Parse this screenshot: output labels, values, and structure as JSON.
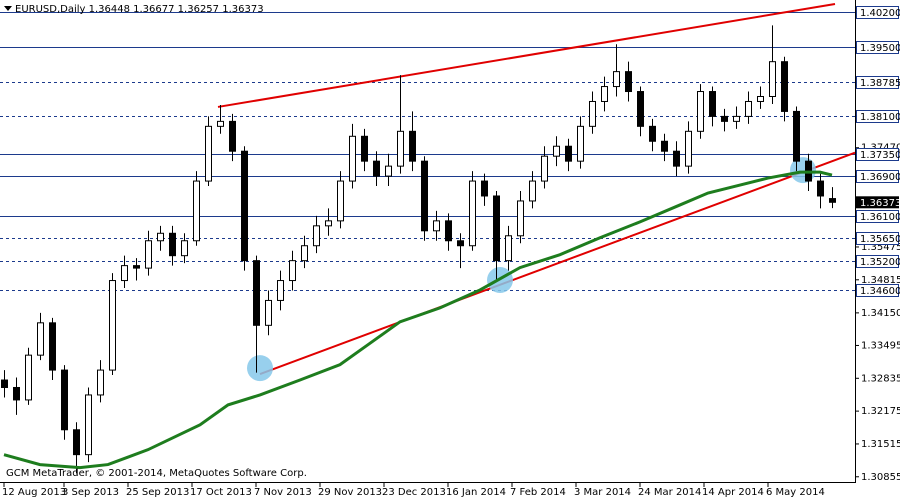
{
  "chart_data": {
    "type": "candlestick",
    "title": "EURUSD,Daily  1.36448 1.36677 1.36257 1.36373",
    "footer": "GCM MetaTrader, © 2001-2014, MetaQuotes Software Corp.",
    "xlim": [
      -1,
      212.75
    ],
    "ylim": [
      1.3075,
      1.4044
    ],
    "xticks": [
      {
        "value": 0,
        "label": "12 Aug 2013"
      },
      {
        "value": 15,
        "label": "3 Sep 2013"
      },
      {
        "value": 31,
        "label": "25 Sep 2013"
      },
      {
        "value": 47,
        "label": "17 Oct 2013"
      },
      {
        "value": 63,
        "label": "7 Nov 2013"
      },
      {
        "value": 79,
        "label": "29 Nov 2013"
      },
      {
        "value": 95,
        "label": "23 Dec 2013"
      },
      {
        "value": 111,
        "label": "16 Jan 2014"
      },
      {
        "value": 127,
        "label": "7 Feb 2014"
      },
      {
        "value": 143,
        "label": "3 Mar 2014"
      },
      {
        "value": 159,
        "label": "24 Mar 2014"
      },
      {
        "value": 175,
        "label": "14 Apr 2014"
      },
      {
        "value": 191,
        "label": "6 May 2014"
      }
    ],
    "yticks": [
      {
        "value": 1.3747,
        "label": "1.37470"
      },
      {
        "value": 1.35475,
        "label": "1.35475"
      },
      {
        "value": 1.34815,
        "label": "1.34815"
      },
      {
        "value": 1.3415,
        "label": "1.34150"
      },
      {
        "value": 1.33495,
        "label": "1.33495"
      },
      {
        "value": 1.32835,
        "label": "1.32835"
      },
      {
        "value": 1.32175,
        "label": "1.32175"
      },
      {
        "value": 1.31515,
        "label": "1.31515"
      },
      {
        "value": 1.30855,
        "label": "1.30855"
      }
    ],
    "levels": [
      {
        "value": 1.402,
        "label": "1.40200",
        "style": "solid"
      },
      {
        "value": 1.395,
        "label": "1.39500",
        "style": "solid"
      },
      {
        "value": 1.38785,
        "label": "1.38785",
        "style": "dashed"
      },
      {
        "value": 1.381,
        "label": "1.38100",
        "style": "dashed"
      },
      {
        "value": 1.3735,
        "label": "1.37350",
        "style": "solid"
      },
      {
        "value": 1.369,
        "label": "1.36900",
        "style": "solid"
      },
      {
        "value": 1.361,
        "label": "1.36100",
        "style": "solid"
      },
      {
        "value": 1.3565,
        "label": "1.35650",
        "style": "dashed"
      },
      {
        "value": 1.352,
        "label": "1.35200",
        "style": "dashed"
      },
      {
        "value": 1.346,
        "label": "1.34600",
        "style": "dashed"
      }
    ],
    "level_color": "#1c3a8c",
    "last_price": {
      "value": 1.36373,
      "label": "1.36373"
    },
    "candle_color": "#000000",
    "x": [
      0,
      3,
      6,
      9,
      12,
      15,
      18,
      21,
      24,
      27,
      30,
      33,
      36,
      39,
      42,
      45,
      48,
      51,
      54,
      57,
      60,
      63,
      66,
      69,
      72,
      75,
      78,
      81,
      84,
      87,
      90,
      93,
      96,
      99,
      102,
      105,
      108,
      111,
      114,
      117,
      120,
      123,
      126,
      129,
      132,
      135,
      138,
      141,
      144,
      147,
      150,
      153,
      156,
      159,
      162,
      165,
      168,
      171,
      174,
      177,
      180,
      183,
      186,
      189,
      192,
      195,
      198,
      201,
      204,
      207
    ],
    "open": [
      1.328,
      1.3265,
      1.324,
      1.333,
      1.3395,
      1.33,
      1.318,
      1.313,
      1.325,
      1.33,
      1.348,
      1.351,
      1.3505,
      1.356,
      1.3575,
      1.353,
      1.356,
      1.368,
      1.379,
      1.38,
      1.374,
      1.352,
      1.339,
      1.344,
      1.348,
      1.352,
      1.355,
      1.359,
      1.36,
      1.368,
      1.377,
      1.372,
      1.369,
      1.371,
      1.378,
      1.372,
      1.358,
      1.36,
      1.356,
      1.355,
      1.368,
      1.365,
      1.352,
      1.357,
      1.364,
      1.368,
      1.373,
      1.375,
      1.372,
      1.379,
      1.384,
      1.387,
      1.39,
      1.386,
      1.379,
      1.376,
      1.374,
      1.371,
      1.378,
      1.386,
      1.381,
      1.38,
      1.381,
      1.384,
      1.385,
      1.392,
      1.382,
      1.372,
      1.368,
      1.36448
    ],
    "high": [
      1.33,
      1.3285,
      1.3345,
      1.3415,
      1.3405,
      1.331,
      1.3195,
      1.3265,
      1.332,
      1.3495,
      1.353,
      1.3525,
      1.358,
      1.359,
      1.359,
      1.3575,
      1.37,
      1.381,
      1.3833,
      1.3815,
      1.375,
      1.353,
      1.346,
      1.35,
      1.354,
      1.357,
      1.361,
      1.3625,
      1.37,
      1.3795,
      1.3785,
      1.374,
      1.3735,
      1.3893,
      1.382,
      1.373,
      1.362,
      1.3615,
      1.3575,
      1.37,
      1.3695,
      1.366,
      1.359,
      1.366,
      1.37,
      1.375,
      1.377,
      1.3765,
      1.381,
      1.386,
      1.389,
      1.3955,
      1.392,
      1.387,
      1.3805,
      1.3775,
      1.376,
      1.38,
      1.3875,
      1.387,
      1.3825,
      1.383,
      1.386,
      1.387,
      1.3993,
      1.393,
      1.383,
      1.3735,
      1.3695,
      1.36677
    ],
    "low": [
      1.3245,
      1.321,
      1.323,
      1.332,
      1.328,
      1.316,
      1.3092,
      1.3115,
      1.3235,
      1.329,
      1.3465,
      1.348,
      1.349,
      1.354,
      1.351,
      1.3515,
      1.355,
      1.367,
      1.3775,
      1.372,
      1.35,
      1.3295,
      1.337,
      1.342,
      1.346,
      1.3505,
      1.3535,
      1.357,
      1.3585,
      1.3665,
      1.37,
      1.367,
      1.367,
      1.3695,
      1.37,
      1.356,
      1.356,
      1.354,
      1.3505,
      1.354,
      1.363,
      1.3477,
      1.35,
      1.3555,
      1.3625,
      1.3665,
      1.371,
      1.37,
      1.3705,
      1.3775,
      1.382,
      1.385,
      1.384,
      1.377,
      1.374,
      1.372,
      1.369,
      1.3695,
      1.3765,
      1.379,
      1.378,
      1.3785,
      1.3795,
      1.3825,
      1.3835,
      1.38,
      1.37,
      1.366,
      1.3625,
      1.36257
    ],
    "close": [
      1.3265,
      1.324,
      1.333,
      1.3395,
      1.33,
      1.318,
      1.313,
      1.325,
      1.33,
      1.348,
      1.351,
      1.3505,
      1.356,
      1.3575,
      1.353,
      1.356,
      1.368,
      1.379,
      1.38,
      1.374,
      1.352,
      1.339,
      1.344,
      1.348,
      1.352,
      1.355,
      1.359,
      1.36,
      1.368,
      1.377,
      1.372,
      1.369,
      1.371,
      1.378,
      1.372,
      1.358,
      1.36,
      1.356,
      1.355,
      1.368,
      1.365,
      1.352,
      1.357,
      1.364,
      1.368,
      1.373,
      1.375,
      1.372,
      1.379,
      1.384,
      1.387,
      1.39,
      1.386,
      1.379,
      1.376,
      1.374,
      1.371,
      1.378,
      1.386,
      1.381,
      1.38,
      1.381,
      1.384,
      1.385,
      1.392,
      1.382,
      1.372,
      1.368,
      1.365,
      1.36373
    ],
    "moving_average": {
      "color": "#1e7d1e",
      "x": [
        0,
        9,
        19,
        26,
        36,
        49,
        56,
        64,
        74,
        84,
        91,
        99,
        109,
        119,
        129,
        139,
        149,
        159,
        169,
        176,
        184,
        191,
        199,
        204,
        207
      ],
      "values": [
        1.313,
        1.311,
        1.3104,
        1.311,
        1.314,
        1.319,
        1.323,
        1.325,
        1.328,
        1.3311,
        1.3351,
        1.3397,
        1.3425,
        1.3461,
        1.3506,
        1.3532,
        1.3566,
        1.3598,
        1.3632,
        1.3656,
        1.3672,
        1.3686,
        1.3698,
        1.3698,
        1.3692
      ]
    },
    "trendlines": {
      "color": "#e00000",
      "lines": [
        {
          "x": [
            53.5,
            207.75
          ],
          "y": [
            1.3829,
            1.4036
          ]
        },
        {
          "x": [
            64,
            212.75
          ],
          "y": [
            1.3292,
            1.3737
          ]
        }
      ]
    },
    "highlights": {
      "color": "#86c8ea",
      "points": [
        {
          "x": 64,
          "y": 1.3304
        },
        {
          "x": 124,
          "y": 1.3481
        },
        {
          "x": 199.75,
          "y": 1.3702
        }
      ]
    }
  }
}
